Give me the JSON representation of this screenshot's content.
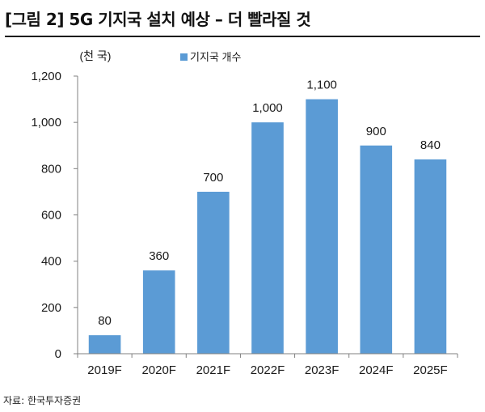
{
  "header": {
    "title": "[그림 2] 5G 기지국 설치 예상 – 더 빨라질 것"
  },
  "footer": {
    "source": "자료: 한국투자증권"
  },
  "chart_data": {
    "type": "bar",
    "title": "[그림 2] 5G 기지국 설치 예상 – 더 빨라질 것",
    "unit_label": "(천 국)",
    "legend": [
      "기지국 개수"
    ],
    "legend_position": "top-center",
    "categories": [
      "2019F",
      "2020F",
      "2021F",
      "2022F",
      "2023F",
      "2024F",
      "2025F"
    ],
    "values": [
      80,
      360,
      700,
      1000,
      1100,
      900,
      840
    ],
    "data_labels": [
      "80",
      "360",
      "700",
      "1,000",
      "1,100",
      "900",
      "840"
    ],
    "yticks": [
      0,
      200,
      400,
      600,
      800,
      1000,
      1200
    ],
    "ytick_labels": [
      "0",
      "200",
      "400",
      "600",
      "800",
      "1,000",
      "1,200"
    ],
    "ylim": [
      0,
      1200
    ],
    "grid": false,
    "bar_color": "#5b9bd5"
  }
}
